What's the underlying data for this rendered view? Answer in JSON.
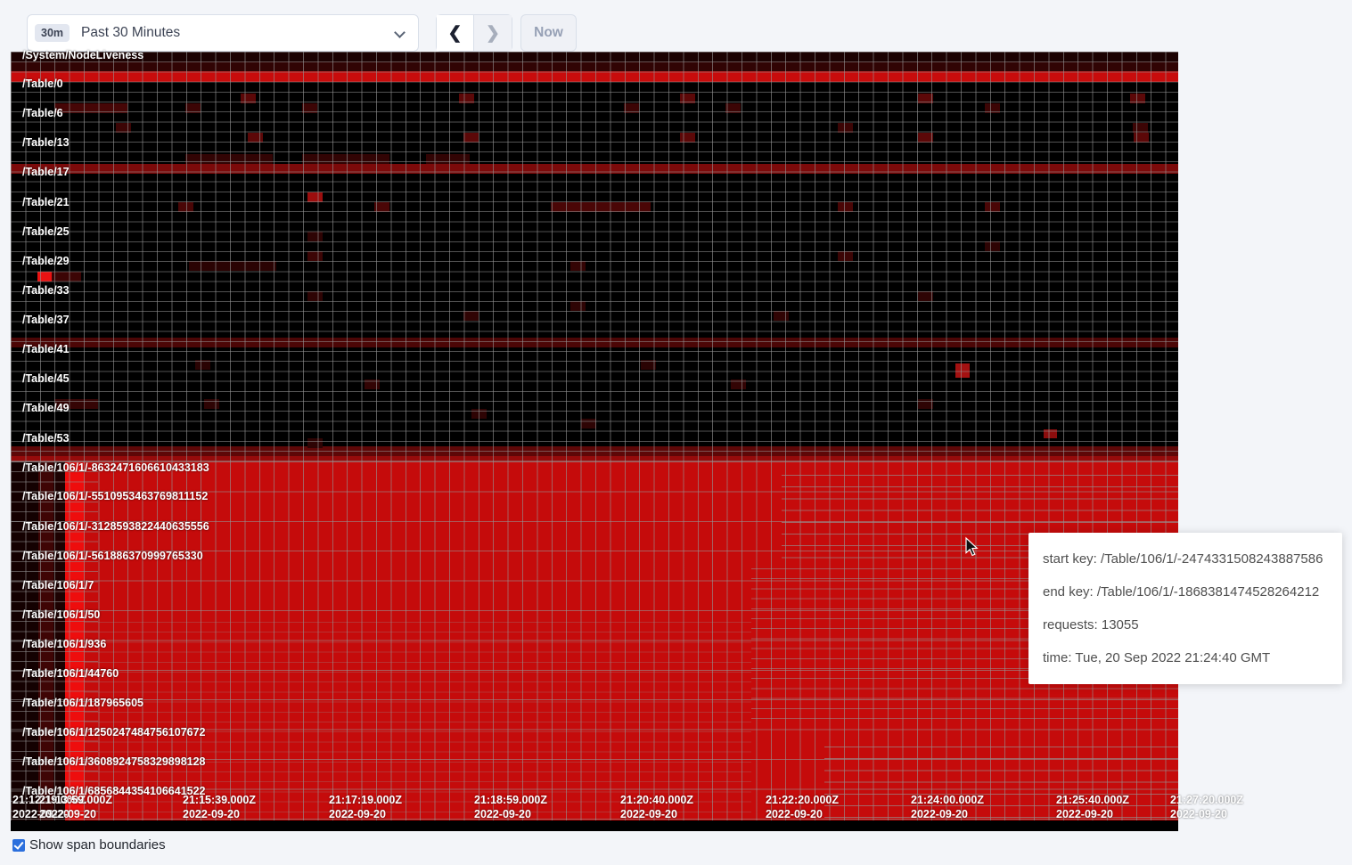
{
  "toolbar": {
    "range_badge": "30m",
    "range_label": "Past 30 Minutes",
    "back_glyph": "❮",
    "forward_glyph": "❯",
    "now_label": "Now"
  },
  "tooltip": {
    "start_key": "start key: /Table/106/1/-2474331508243887586",
    "end_key": "end key: /Table/106/1/-1868381474528264212",
    "requests": "requests: 13055",
    "time": "time: Tue, 20 Sep 2022 21:24:40 GMT"
  },
  "footer": {
    "checkbox_label": "Show span boundaries",
    "checked": true
  },
  "heatmap": {
    "row_labels": [
      [
        "/System/NodeLiveness",
        5
      ],
      [
        "/Table/0",
        37
      ],
      [
        "/Table/6",
        70
      ],
      [
        "/Table/13",
        103
      ],
      [
        "/Table/17",
        136
      ],
      [
        "/Table/21",
        170
      ],
      [
        "/Table/25",
        203
      ],
      [
        "/Table/29",
        236
      ],
      [
        "/Table/33",
        269
      ],
      [
        "/Table/37",
        302
      ],
      [
        "/Table/41",
        335
      ],
      [
        "/Table/45",
        368
      ],
      [
        "/Table/49",
        401
      ],
      [
        "/Table/53",
        435
      ],
      [
        "/Table/106/1/-8632471606610433183",
        468
      ],
      [
        "/Table/106/1/-5510953463769811152",
        500
      ],
      [
        "/Table/106/1/-3128593822440635556",
        534
      ],
      [
        "/Table/106/1/-561886370999765330",
        567
      ],
      [
        "/Table/106/1/7",
        600
      ],
      [
        "/Table/106/1/50",
        633
      ],
      [
        "/Table/106/1/936",
        666
      ],
      [
        "/Table/106/1/44760",
        699
      ],
      [
        "/Table/106/1/187965605",
        732
      ],
      [
        "/Table/106/1/1250247484756107672",
        765
      ],
      [
        "/Table/106/1/3608924758329898128",
        798
      ],
      [
        "/Table/106/1/6856844354106641522",
        831
      ]
    ],
    "x_axis": [
      [
        "21:12:19.000Z",
        "2022-09-20",
        2
      ],
      [
        "21:13:59.000Z",
        "2022-09-20",
        32
      ],
      [
        "21:15:39.000Z",
        "2022-09-20",
        193
      ],
      [
        "21:17:19.000Z",
        "2022-09-20",
        357
      ],
      [
        "21:18:59.000Z",
        "2022-09-20",
        520
      ],
      [
        "21:20:40.000Z",
        "2022-09-20",
        684
      ],
      [
        "21:22:20.000Z",
        "2022-09-20",
        847
      ],
      [
        "21:24:00.000Z",
        "2022-09-20",
        1010
      ],
      [
        "21:25:40.000Z",
        "2022-09-20",
        1173
      ],
      [
        "21:27:20.000Z",
        "2022-09-20",
        1301
      ]
    ],
    "cells": [
      [
        0,
        0,
        1310,
        11,
        "#1c0202"
      ],
      [
        0,
        11,
        1310,
        11,
        "#310404"
      ],
      [
        0,
        22,
        1310,
        12,
        "#c80c0c"
      ],
      [
        258,
        47,
        17,
        11,
        "#5c0808"
      ],
      [
        503,
        47,
        17,
        11,
        "#5c0808"
      ],
      [
        751,
        47,
        17,
        11,
        "#5c0808"
      ],
      [
        1018,
        47,
        17,
        11,
        "#5c0808"
      ],
      [
        1256,
        47,
        17,
        11,
        "#5c0808"
      ],
      [
        49,
        58,
        82,
        11,
        "#460606"
      ],
      [
        196,
        58,
        17,
        11,
        "#3c0505"
      ],
      [
        327,
        58,
        17,
        11,
        "#3c0505"
      ],
      [
        688,
        58,
        17,
        11,
        "#3c0505"
      ],
      [
        802,
        58,
        17,
        11,
        "#3c0505"
      ],
      [
        1093,
        58,
        17,
        11,
        "#3c0505"
      ],
      [
        118,
        80,
        17,
        11,
        "#3c0505"
      ],
      [
        928,
        80,
        17,
        11,
        "#3c0505"
      ],
      [
        1259,
        80,
        17,
        11,
        "#3c0505"
      ],
      [
        266,
        91,
        17,
        11,
        "#5c0808"
      ],
      [
        508,
        91,
        17,
        11,
        "#5c0808"
      ],
      [
        751,
        91,
        17,
        11,
        "#5c0808"
      ],
      [
        1018,
        91,
        17,
        11,
        "#5c0808"
      ],
      [
        1260,
        91,
        17,
        11,
        "#5c0808"
      ],
      [
        196,
        115,
        98,
        11,
        "#320404"
      ],
      [
        327,
        115,
        98,
        11,
        "#320404"
      ],
      [
        466,
        115,
        49,
        11,
        "#320404"
      ],
      [
        0,
        126,
        1310,
        11,
        "#7c0a0a"
      ],
      [
        49,
        126,
        82,
        11,
        "#a50e0e"
      ],
      [
        333,
        126,
        17,
        11,
        "#b61010"
      ],
      [
        578,
        126,
        50,
        11,
        "#a50e0e"
      ],
      [
        666,
        126,
        50,
        11,
        "#9c0e0e"
      ],
      [
        846,
        126,
        50,
        11,
        "#a50e0e"
      ],
      [
        1267,
        126,
        43,
        11,
        "#b01010"
      ],
      [
        333,
        158,
        17,
        11,
        "#9c0e0e"
      ],
      [
        188,
        169,
        17,
        11,
        "#4a0606"
      ],
      [
        408,
        169,
        17,
        11,
        "#4a0606"
      ],
      [
        606,
        169,
        112,
        11,
        "#4a0606"
      ],
      [
        928,
        169,
        17,
        11,
        "#4a0606"
      ],
      [
        1093,
        169,
        17,
        11,
        "#4a0606"
      ],
      [
        333,
        202,
        17,
        11,
        "#2e0404"
      ],
      [
        1093,
        213,
        17,
        11,
        "#2e0404"
      ],
      [
        333,
        224,
        17,
        11,
        "#3c0505"
      ],
      [
        928,
        224,
        17,
        11,
        "#3c0505"
      ],
      [
        200,
        235,
        98,
        11,
        "#2a0303"
      ],
      [
        628,
        235,
        17,
        11,
        "#340404"
      ],
      [
        30,
        247,
        16,
        11,
        "#ea1212"
      ],
      [
        46,
        247,
        33,
        11,
        "#3c0505"
      ],
      [
        333,
        269,
        17,
        11,
        "#2e0404"
      ],
      [
        1018,
        269,
        17,
        11,
        "#2e0404"
      ],
      [
        628,
        280,
        17,
        11,
        "#2e0404"
      ],
      [
        508,
        291,
        17,
        11,
        "#300404"
      ],
      [
        856,
        291,
        17,
        11,
        "#300404"
      ],
      [
        0,
        321,
        1310,
        11,
        "#4c0606"
      ],
      [
        207,
        346,
        17,
        11,
        "#2a0303"
      ],
      [
        707,
        346,
        17,
        11,
        "#2a0303"
      ],
      [
        1060,
        350,
        16,
        16,
        "#a31111"
      ],
      [
        397,
        368,
        17,
        11,
        "#330404"
      ],
      [
        808,
        368,
        17,
        11,
        "#330404"
      ],
      [
        49,
        390,
        49,
        11,
        "#350505"
      ],
      [
        217,
        390,
        17,
        11,
        "#2e0404"
      ],
      [
        1018,
        390,
        17,
        11,
        "#2e0404"
      ],
      [
        517,
        401,
        17,
        11,
        "#2e0404"
      ],
      [
        640,
        412,
        17,
        11,
        "#2e0404"
      ],
      [
        1159,
        424,
        15,
        10,
        "#8c0d0d"
      ],
      [
        333,
        434,
        17,
        11,
        "#2e0404"
      ],
      [
        0,
        443,
        1310,
        11,
        "#5e0707"
      ],
      [
        0,
        454,
        1310,
        6,
        "#960b0b"
      ],
      [
        83,
        460,
        1227,
        413,
        "#c50b0b"
      ],
      [
        0,
        460,
        31,
        413,
        "#140101"
      ],
      [
        31,
        460,
        17,
        413,
        "#3f0505"
      ],
      [
        48,
        460,
        13,
        413,
        "#1d0202"
      ],
      [
        61,
        460,
        22,
        413,
        "#ee0d0d"
      ],
      [
        98,
        460,
        13,
        413,
        "#dc0c0c"
      ],
      [
        373,
        460,
        13,
        413,
        "#d40c0c"
      ],
      [
        680,
        460,
        14,
        413,
        "#bc0a0a"
      ],
      [
        831,
        460,
        17,
        120,
        "#ee0d0d"
      ],
      [
        864,
        460,
        13,
        120,
        "#d80c0c"
      ],
      [
        831,
        752,
        17,
        121,
        "#ee0d0d"
      ],
      [
        864,
        752,
        13,
        121,
        "#d80c0c"
      ],
      [
        831,
        580,
        479,
        172,
        "#070707"
      ]
    ]
  }
}
